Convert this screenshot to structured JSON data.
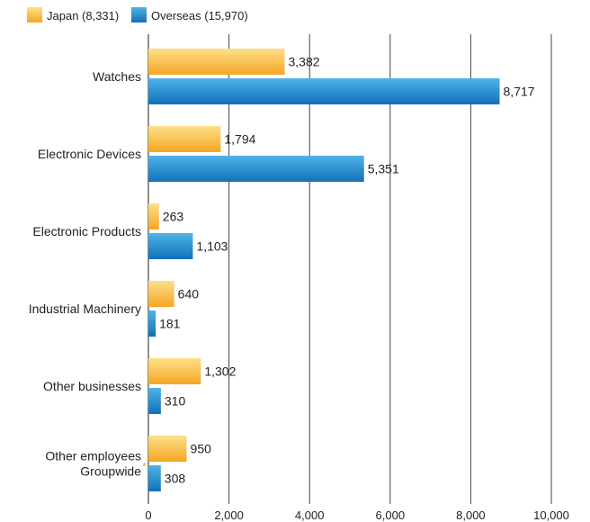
{
  "chart_data": {
    "type": "bar",
    "orientation": "horizontal",
    "categories": [
      "Watches",
      "Electronic Devices",
      "Electronic Products",
      "Industrial Machinery",
      "Other businesses",
      "Other employees Groupwide"
    ],
    "category_lines": [
      [
        "Watches"
      ],
      [
        "Electronic Devices"
      ],
      [
        "Electronic Products"
      ],
      [
        "Industrial Machinery"
      ],
      [
        "Other businesses"
      ],
      [
        "Other employees",
        "Groupwide"
      ]
    ],
    "asterisk": "*",
    "series": [
      {
        "name": "Japan (8,331)",
        "values": [
          3382,
          1794,
          263,
          640,
          1302,
          950
        ],
        "labels": [
          "3,382",
          "1,794",
          "263",
          "640",
          "1,302",
          "950"
        ]
      },
      {
        "name": "Overseas (15,970)",
        "values": [
          8717,
          5351,
          1103,
          181,
          310,
          308
        ],
        "labels": [
          "8,717",
          "5,351",
          "1,103",
          "181",
          "310",
          "308"
        ]
      }
    ],
    "xlim": [
      0,
      10000
    ],
    "xticks": [
      0,
      2000,
      4000,
      6000,
      8000,
      10000
    ],
    "xtick_labels": [
      "0",
      "2,000",
      "4,000",
      "6,000",
      "8,000",
      "10,000"
    ],
    "grid": true,
    "legend_position": "top-left",
    "colors": {
      "japan_light": "#fde08a",
      "japan_dark": "#f5a623",
      "overseas_light": "#4fb3e8",
      "overseas_dark": "#1270b8",
      "asterisk": "#f5a623",
      "grid": "#444444",
      "text": "#222222"
    }
  }
}
